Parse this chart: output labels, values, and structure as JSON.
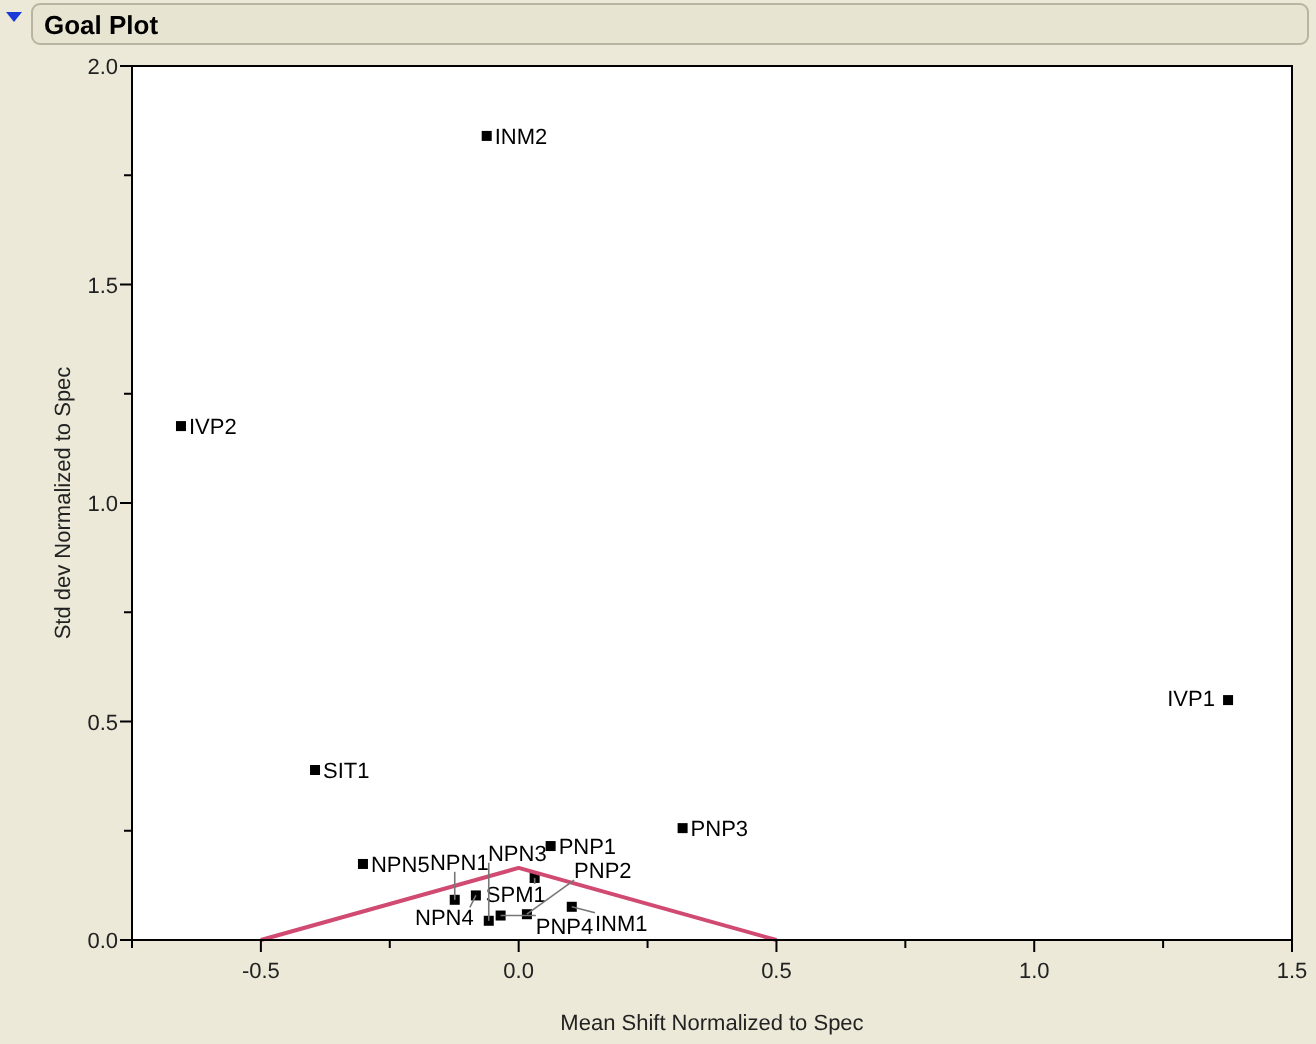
{
  "chart_data": {
    "type": "scatter",
    "title": "Goal Plot",
    "xlabel": "Mean Shift Normalized to Spec",
    "ylabel": "Std dev Normalized to Spec",
    "xlim": [
      -0.75,
      1.5
    ],
    "xticks": [
      {
        "value": -0.75,
        "label": null
      },
      -0.5,
      {
        "value": -0.25,
        "label": null
      },
      {
        "value": 0,
        "label": "0.0"
      },
      {
        "value": 0.25,
        "label": null
      },
      0.5,
      {
        "value": 0.75,
        "label": null
      },
      {
        "value": 1,
        "label": "1.0"
      },
      {
        "value": 1.25,
        "label": null
      },
      1.5
    ],
    "ylim": [
      0,
      2
    ],
    "yticks": [
      {
        "value": 0,
        "label": "0.0"
      },
      {
        "value": 0.25,
        "label": null
      },
      0.5,
      {
        "value": 0.75,
        "label": null
      },
      {
        "value": 1,
        "label": "1.0"
      },
      {
        "value": 1.25,
        "label": null
      },
      1.5,
      {
        "value": 1.75,
        "label": null
      },
      {
        "value": 2,
        "label": "2.0"
      }
    ],
    "grid": false,
    "marker": "square",
    "series": [
      {
        "color": "#000000",
        "x": [
          -0.062,
          -0.655,
          1.376,
          -0.395,
          0.318,
          0.062,
          -0.302,
          0.031,
          -0.083,
          -0.124,
          -0.035,
          -0.058,
          0.016,
          0.103
        ],
        "values": [
          1.84,
          1.176,
          0.549,
          0.389,
          0.256,
          0.215,
          0.174,
          0.142,
          0.102,
          0.092,
          0.056,
          0.044,
          0.059,
          0.076
        ]
      },
      {
        "type": "line",
        "color": "#d04a72",
        "marker": "none",
        "line_style": "solid",
        "x": [
          -0.5,
          0,
          0.5
        ],
        "values": [
          0,
          0.165,
          0
        ]
      }
    ],
    "annotations": [
      {
        "text": "INM2",
        "x": -0.062,
        "y": 1.84
      },
      {
        "text": "IVP2",
        "x": -0.655,
        "y": 1.176
      },
      {
        "text": "IVP1",
        "x": 1.376,
        "y": 0.549
      },
      {
        "text": "SIT1",
        "x": -0.395,
        "y": 0.389
      },
      {
        "text": "PNP3",
        "x": 0.318,
        "y": 0.256
      },
      {
        "text": "PNP1",
        "x": 0.062,
        "y": 0.215
      },
      {
        "text": "NPN5",
        "x": -0.302,
        "y": 0.174
      },
      {
        "text": "SPM1",
        "x": 0.031,
        "y": 0.142
      },
      {
        "text": "NPN4",
        "x": -0.083,
        "y": 0.102
      },
      {
        "text": "NPN1",
        "x": -0.124,
        "y": 0.092
      },
      {
        "text": "PNP4",
        "x": -0.035,
        "y": 0.056
      },
      {
        "text": "NPN3",
        "x": -0.058,
        "y": 0.044
      },
      {
        "text": "PNP2",
        "x": 0.016,
        "y": 0.059
      },
      {
        "text": "INM1",
        "x": 0.103,
        "y": 0.076
      }
    ]
  }
}
